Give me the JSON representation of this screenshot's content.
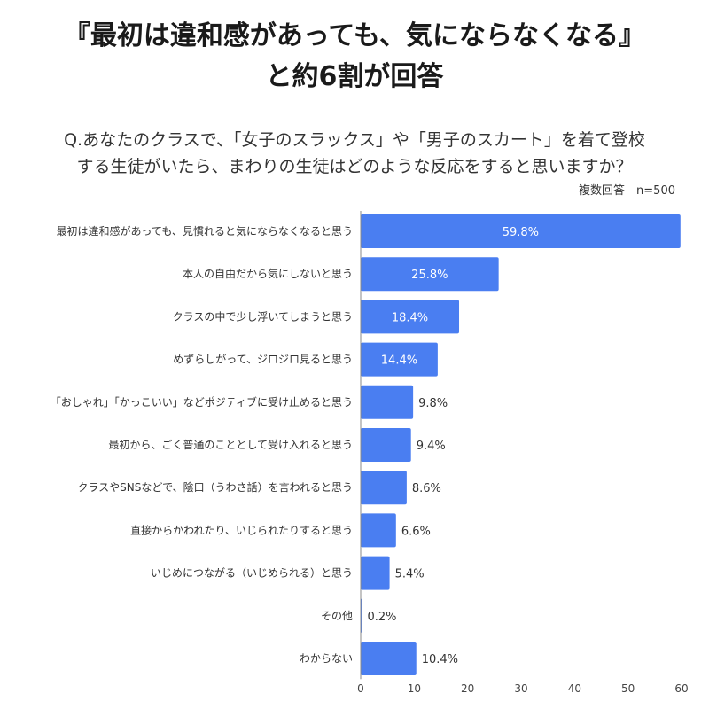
{
  "title_line1": "『最初は違和感があっても、気にならなくなる』",
  "title_line2": "と約6割が回答",
  "question_line1": "Q.あなたのクラスで、「女子のスラックス」や「男子のスカート」を着て登校",
  "question_line2": "する生徒がいたら、まわりの生徒はどのような反応をすると思いますか？",
  "note": "複数回答　n=500",
  "colors": {
    "bar": "#4a7ef1",
    "axis": "#888888",
    "label_inside": "#ffffff",
    "label_outside": "#333333"
  },
  "chart_data": {
    "type": "bar",
    "orientation": "horizontal",
    "categories": [
      "最初は違和感があっても、見慣れると気にならなくなると思う",
      "本人の自由だから気にしないと思う",
      "クラスの中で少し浮いてしまうと思う",
      "めずらしがって、ジロジロ見ると思う",
      "「おしゃれ」「かっこいい」などポジティブに受け止めると思う",
      "最初から、ごく普通のこととして受け入れると思う",
      "クラスやSNSなどで、陰口（うわさ話）を言われると思う",
      "直接からかわれたり、いじられたりすると思う",
      "いじめにつながる（いじめられる）と思う",
      "その他",
      "わからない"
    ],
    "values": [
      59.8,
      25.8,
      18.4,
      14.4,
      9.8,
      9.4,
      8.6,
      6.6,
      5.4,
      0.2,
      10.4
    ],
    "value_labels": [
      "59.8%",
      "25.8%",
      "18.4%",
      "14.4%",
      "9.8%",
      "9.4%",
      "8.6%",
      "6.6%",
      "5.4%",
      "0.2%",
      "10.4%"
    ],
    "xlim": [
      0,
      60
    ],
    "xticks": [
      "0",
      "10",
      "20",
      "30",
      "40",
      "50",
      "60"
    ],
    "grid": false
  }
}
